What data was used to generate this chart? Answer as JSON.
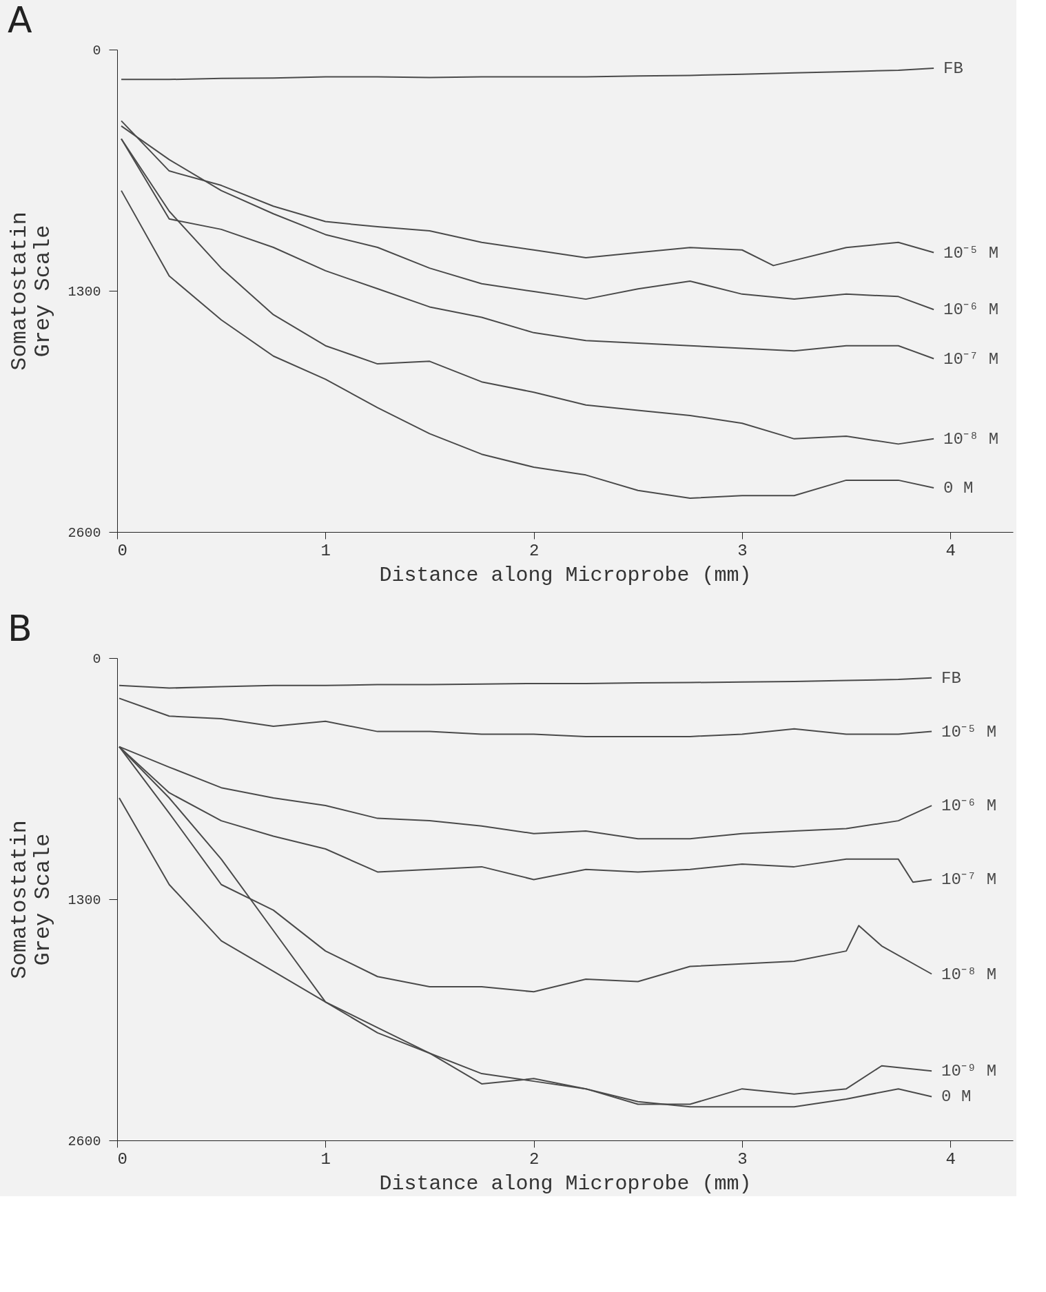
{
  "chart_data": [
    {
      "type": "line",
      "title": "A",
      "xlabel": "Distance along Microprobe  (mm)",
      "ylabel": "Somatostatin\nGrey Scale",
      "xlim": [
        0,
        4.3
      ],
      "xticks": [
        0,
        1,
        2,
        3,
        4
      ],
      "ylim": [
        2600,
        0
      ],
      "yticks": [
        0,
        1300,
        2600
      ],
      "marker": "none",
      "line_style": "solid",
      "x": [
        0.02,
        0.25,
        0.5,
        0.75,
        1.0,
        1.25,
        1.5,
        1.75,
        2.0,
        2.25,
        2.5,
        2.75,
        3.0,
        3.25,
        3.5,
        3.75,
        3.92
      ],
      "series": [
        {
          "name": "FB",
          "color": "#4a4a4a",
          "values": [
            161,
            161,
            155,
            153,
            147,
            147,
            150,
            147,
            147,
            147,
            142,
            139,
            133,
            125,
            119,
            111,
            100
          ]
        },
        {
          "name": "10⁻⁵ M",
          "color": "#4a4a4a",
          "x": [
            0.02,
            0.25,
            0.5,
            0.75,
            1.0,
            1.25,
            1.5,
            1.75,
            2.0,
            2.25,
            2.5,
            2.75,
            3.0,
            3.15,
            3.5,
            3.75,
            3.92
          ],
          "values": [
            384,
            654,
            732,
            844,
            927,
            955,
            977,
            1039,
            1080,
            1122,
            1094,
            1067,
            1080,
            1164,
            1067,
            1039,
            1094
          ]
        },
        {
          "name": "10⁻⁶ M",
          "color": "#4a4a4a",
          "values": [
            412,
            593,
            760,
            885,
            997,
            1066,
            1178,
            1262,
            1304,
            1345,
            1290,
            1248,
            1318,
            1345,
            1318,
            1331,
            1401
          ]
        },
        {
          "name": "10⁻⁷ M",
          "color": "#4a4a4a",
          "values": [
            481,
            913,
            969,
            1066,
            1192,
            1289,
            1387,
            1443,
            1526,
            1568,
            1582,
            1596,
            1610,
            1624,
            1596,
            1596,
            1666
          ]
        },
        {
          "name": "10⁻⁸ M",
          "color": "#4a4a4a",
          "values": [
            481,
            871,
            1178,
            1429,
            1596,
            1694,
            1680,
            1791,
            1847,
            1916,
            1944,
            1972,
            2014,
            2098,
            2084,
            2126,
            2098
          ]
        },
        {
          "name": "0 M",
          "color": "#4a4a4a",
          "values": [
            760,
            1220,
            1457,
            1652,
            1777,
            1930,
            2070,
            2181,
            2251,
            2293,
            2376,
            2418,
            2404,
            2404,
            2321,
            2321,
            2362
          ]
        }
      ]
    },
    {
      "type": "line",
      "title": "B",
      "xlabel": "Distance along Microprobe  (mm)",
      "ylabel": "Somatostatin\nGrey Scale",
      "xlim": [
        0,
        4.3
      ],
      "xticks": [
        0,
        1,
        2,
        3,
        4
      ],
      "ylim": [
        2600,
        0
      ],
      "yticks": [
        0,
        1300,
        2600
      ],
      "marker": "none",
      "line_style": "solid",
      "x": [
        0.01,
        0.25,
        0.5,
        0.75,
        1.0,
        1.25,
        1.5,
        1.75,
        2.0,
        2.25,
        2.5,
        2.75,
        3.0,
        3.25,
        3.5,
        3.75,
        3.91
      ],
      "series": [
        {
          "name": "FB",
          "color": "#4a4a4a",
          "values": [
            148,
            162,
            154,
            148,
            148,
            143,
            143,
            140,
            137,
            137,
            134,
            132,
            129,
            126,
            121,
            115,
            107
          ]
        },
        {
          "name": "10⁻⁵ M",
          "color": "#4a4a4a",
          "values": [
            217,
            313,
            327,
            368,
            341,
            396,
            396,
            410,
            410,
            423,
            423,
            423,
            410,
            382,
            410,
            410,
            396
          ]
        },
        {
          "name": "10⁻⁶ M",
          "color": "#4a4a4a",
          "values": [
            478,
            588,
            699,
            754,
            795,
            864,
            877,
            905,
            946,
            932,
            974,
            974,
            946,
            932,
            919,
            877,
            795
          ]
        },
        {
          "name": "10⁻⁷ M",
          "color": "#4a4a4a",
          "x": [
            0.01,
            0.25,
            0.5,
            0.75,
            1.0,
            1.25,
            1.5,
            1.75,
            2.0,
            2.25,
            2.5,
            2.75,
            3.0,
            3.25,
            3.5,
            3.75,
            3.82,
            3.91
          ],
          "values": [
            478,
            726,
            877,
            960,
            1029,
            1153,
            1139,
            1125,
            1194,
            1139,
            1153,
            1139,
            1111,
            1125,
            1084,
            1084,
            1208,
            1194
          ]
        },
        {
          "name": "10⁻⁸ M",
          "color": "#4a4a4a",
          "x": [
            0.01,
            0.25,
            0.5,
            0.75,
            1.0,
            1.25,
            1.5,
            1.75,
            2.0,
            2.25,
            2.5,
            2.75,
            3.0,
            3.25,
            3.5,
            3.56,
            3.67,
            3.91
          ],
          "values": [
            478,
            836,
            1221,
            1359,
            1579,
            1717,
            1772,
            1772,
            1799,
            1731,
            1744,
            1662,
            1648,
            1634,
            1579,
            1442,
            1552,
            1703
          ]
        },
        {
          "name": "10⁻⁹ M",
          "color": "#4a4a4a",
          "x": [
            0.01,
            0.25,
            0.5,
            0.75,
            1.0,
            1.25,
            1.5,
            1.75,
            2.0,
            2.25,
            2.5,
            2.75,
            3.0,
            3.25,
            3.5,
            3.67,
            3.91
          ],
          "values": [
            478,
            754,
            1084,
            1469,
            1854,
            2020,
            2130,
            2295,
            2267,
            2322,
            2405,
            2405,
            2322,
            2350,
            2322,
            2198,
            2226
          ]
        },
        {
          "name": "0 M",
          "color": "#4a4a4a",
          "values": [
            754,
            1221,
            1524,
            1689,
            1854,
            1992,
            2130,
            2240,
            2281,
            2322,
            2391,
            2419,
            2419,
            2419,
            2377,
            2322,
            2364
          ]
        }
      ]
    }
  ]
}
